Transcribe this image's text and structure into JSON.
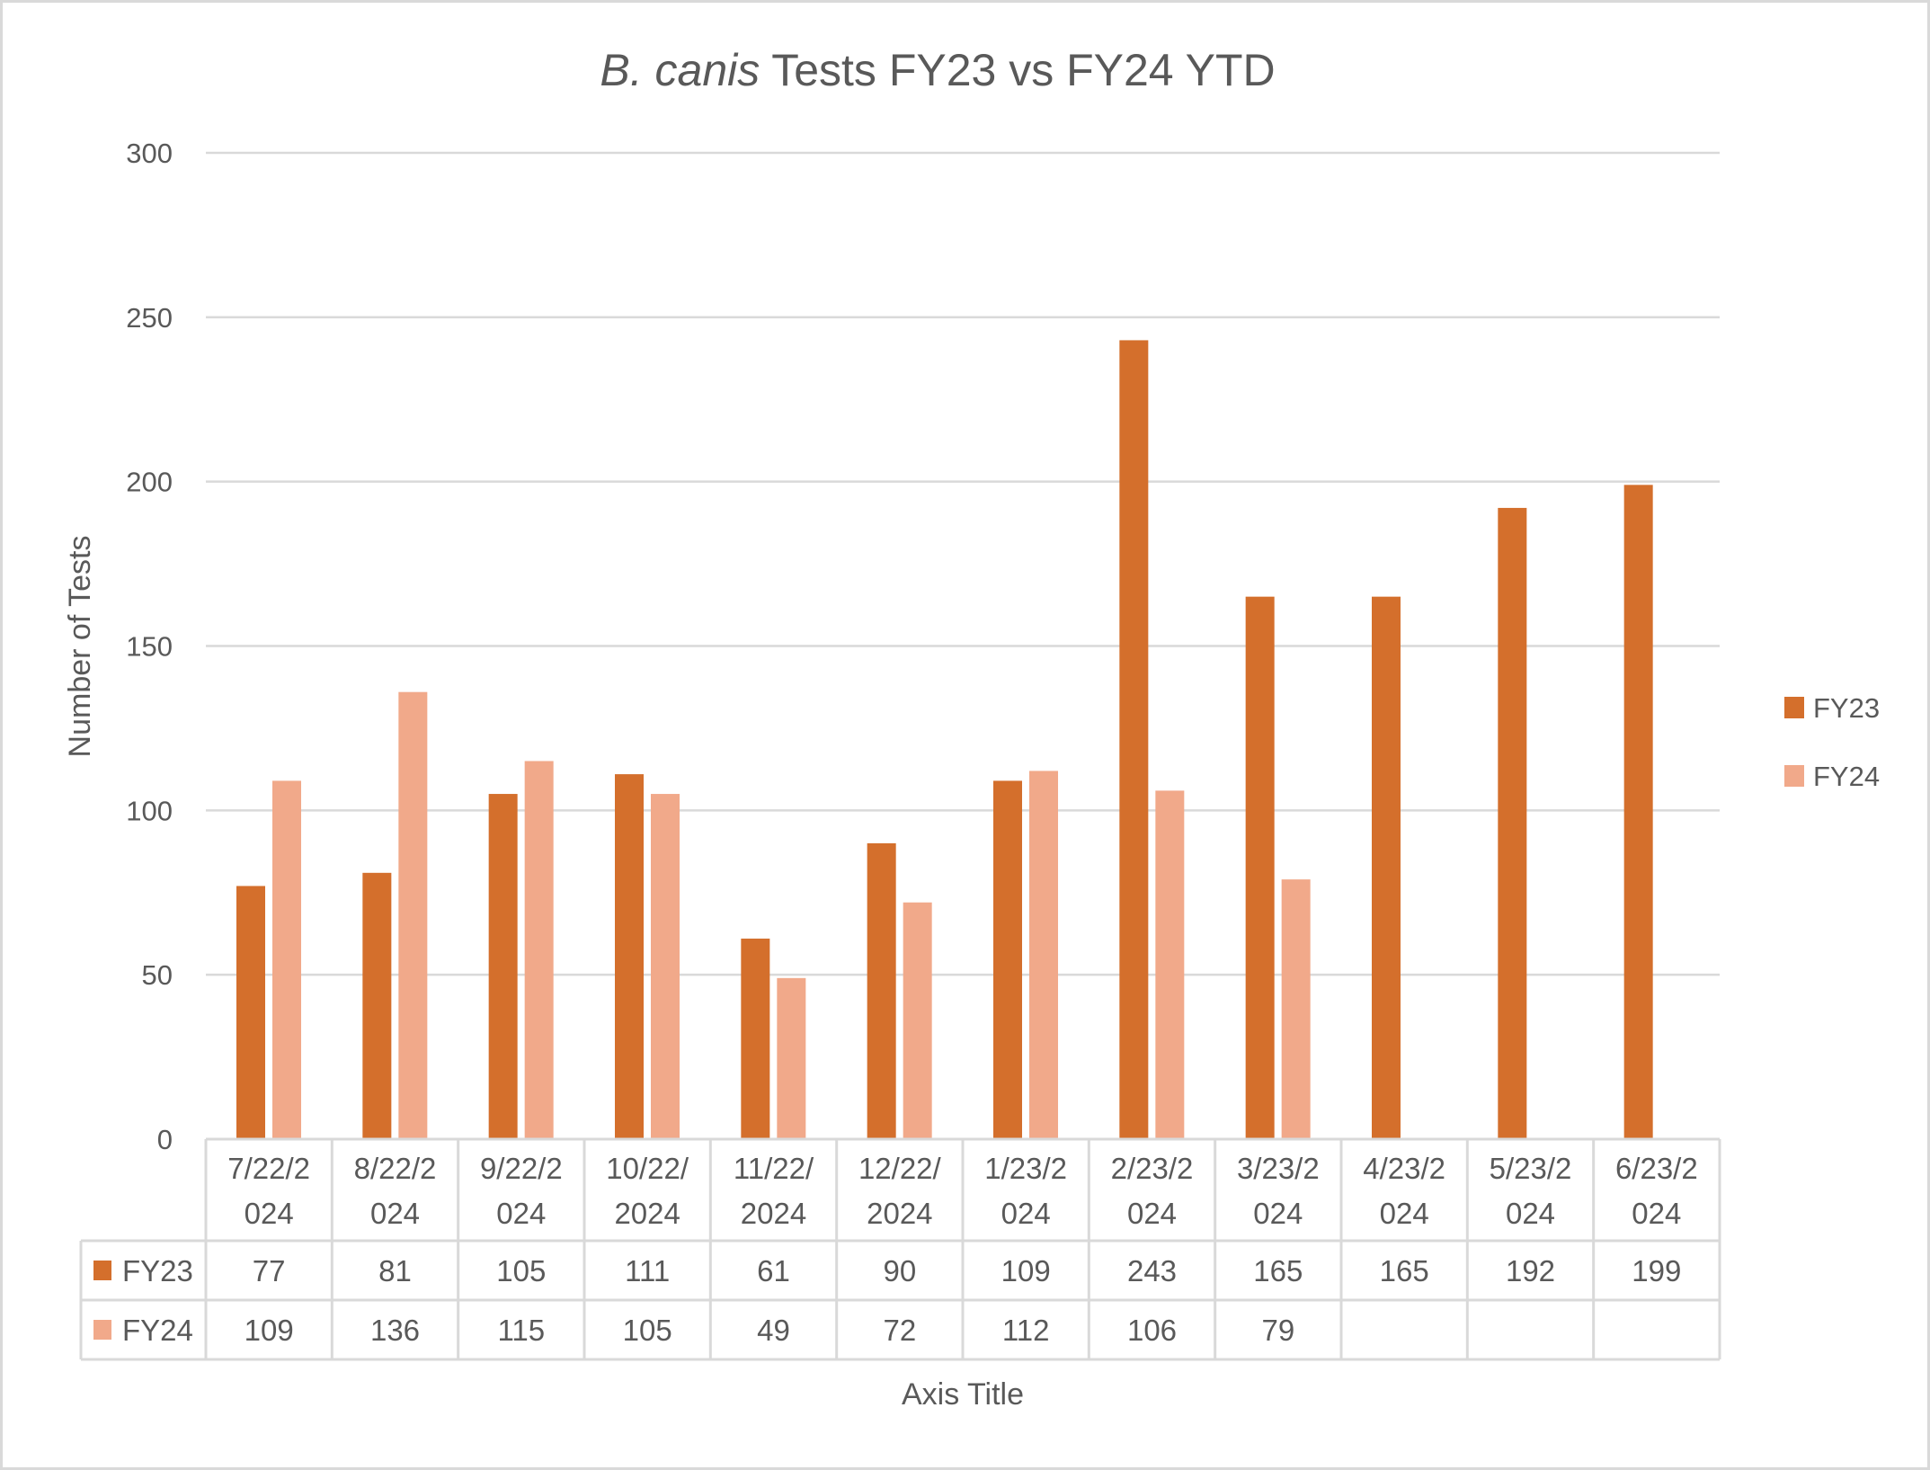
{
  "chart_data": {
    "type": "bar",
    "title_italic": "B. canis",
    "title_rest": " Tests FY23 vs FY24 YTD",
    "xlabel": "Axis Title",
    "ylabel": "Number of Tests",
    "ylim": [
      0,
      300
    ],
    "yticks": [
      0,
      50,
      100,
      150,
      200,
      250,
      300
    ],
    "grid": true,
    "legend_position": "right",
    "data_table": true,
    "categories": [
      [
        "7/22/2",
        "024"
      ],
      [
        "8/22/2",
        "024"
      ],
      [
        "9/22/2",
        "024"
      ],
      [
        "10/22/",
        "2024"
      ],
      [
        "11/22/",
        "2024"
      ],
      [
        "12/22/",
        "2024"
      ],
      [
        "1/23/2",
        "024"
      ],
      [
        "2/23/2",
        "024"
      ],
      [
        "3/23/2",
        "024"
      ],
      [
        "4/23/2",
        "024"
      ],
      [
        "5/23/2",
        "024"
      ],
      [
        "6/23/2",
        "024"
      ]
    ],
    "series": [
      {
        "name": "FY23",
        "color": "#D46F2C",
        "values": [
          77,
          81,
          105,
          111,
          61,
          90,
          109,
          243,
          165,
          165,
          192,
          199
        ]
      },
      {
        "name": "FY24",
        "color": "#F1A98A",
        "values": [
          109,
          136,
          115,
          105,
          49,
          72,
          112,
          106,
          79,
          null,
          null,
          null
        ]
      }
    ]
  }
}
